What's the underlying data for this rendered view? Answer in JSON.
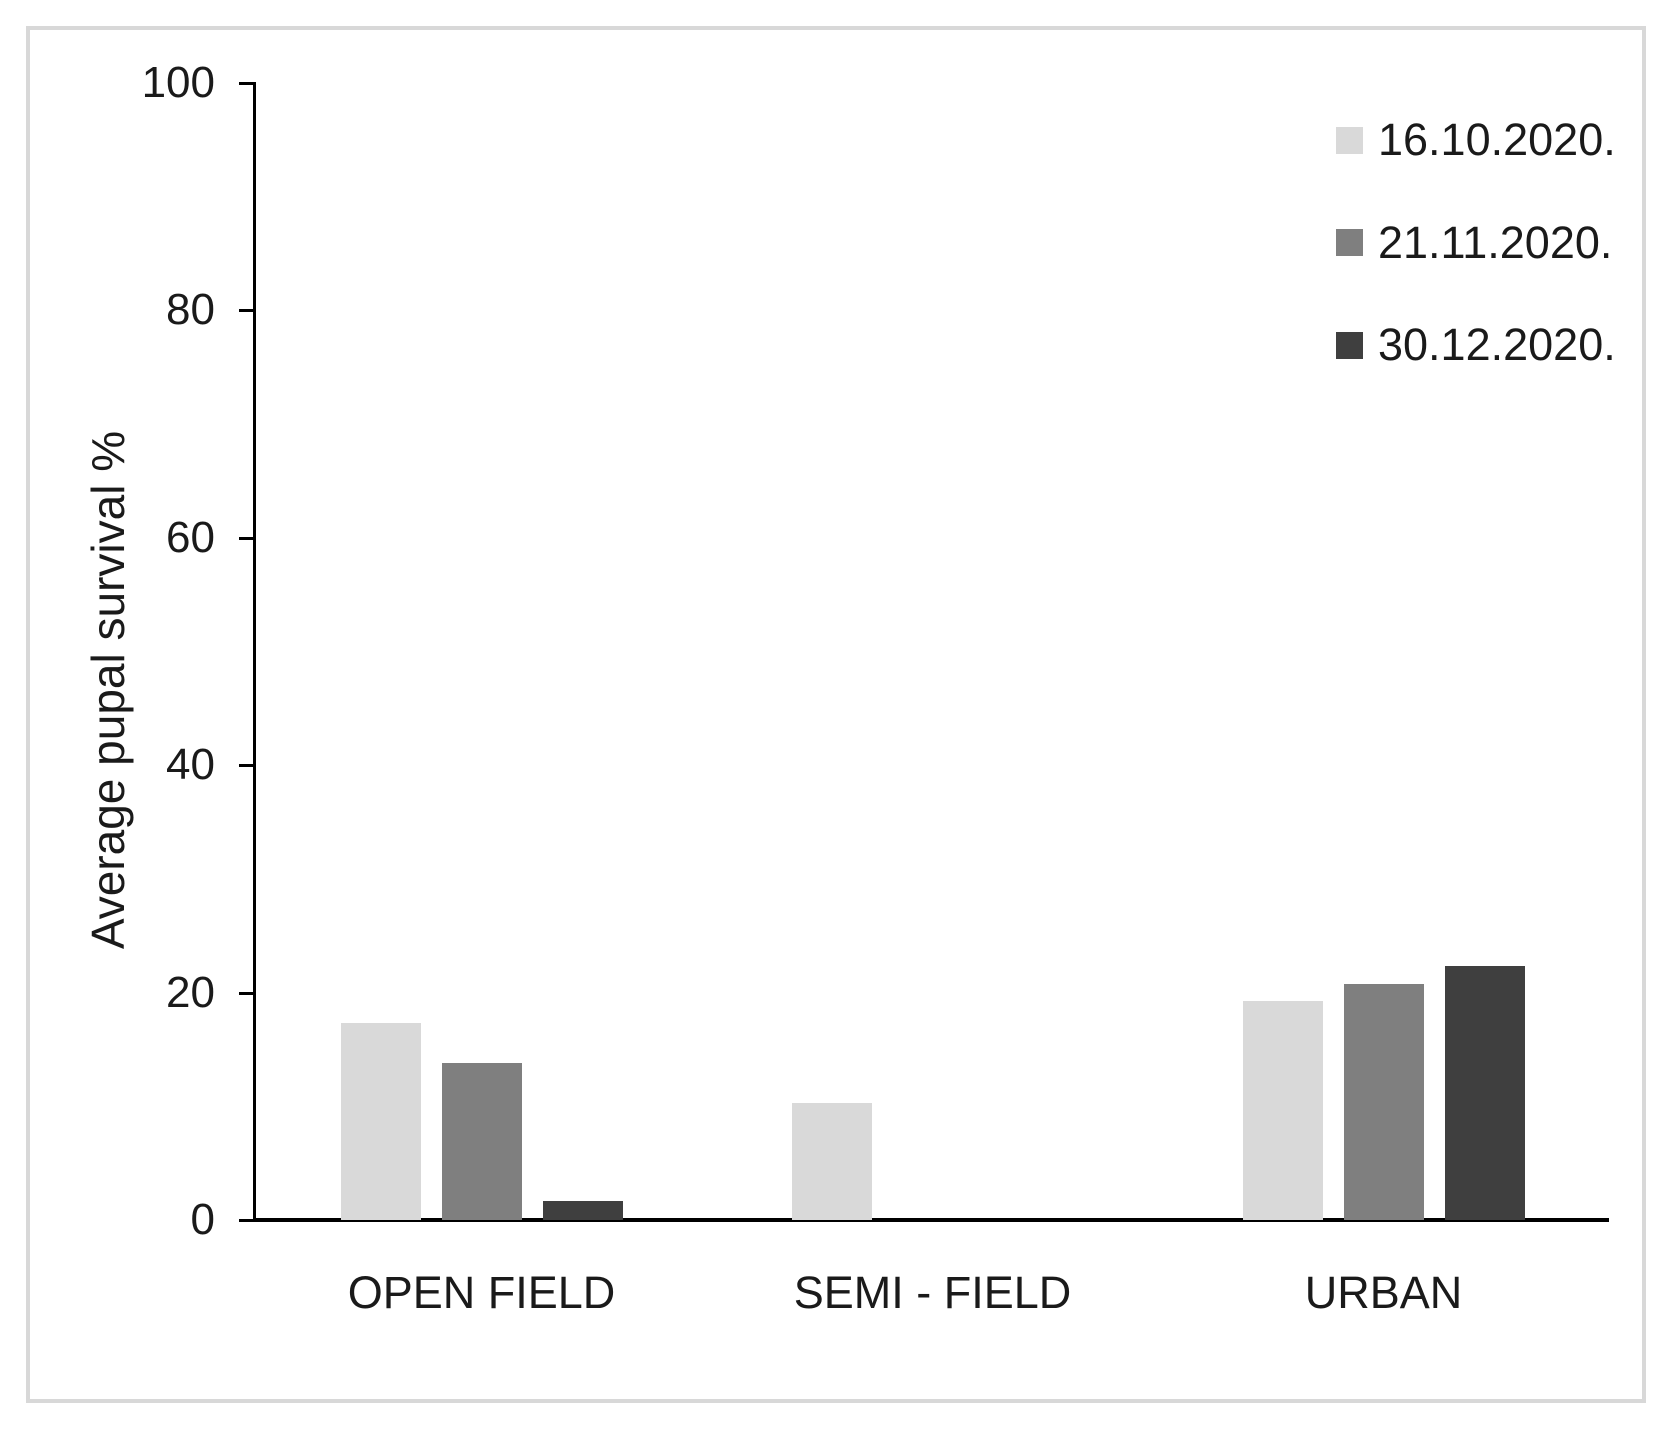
{
  "figure": {
    "background": "#ffffff",
    "frame_border_color": "#d8d8d8"
  },
  "chart_data": {
    "type": "bar",
    "title": "",
    "xlabel": "",
    "ylabel": "Average pupal survival %",
    "categories": [
      "OPEN FIELD",
      "SEMI - FIELD",
      "URBAN"
    ],
    "series": [
      {
        "name": "16.10.2020.",
        "color": "#d9d9d9",
        "values": [
          17.3,
          10.3,
          19.3
        ]
      },
      {
        "name": "21.11.2020.",
        "color": "#7f7f7f",
        "values": [
          13.8,
          0,
          20.8
        ]
      },
      {
        "name": "30.12.2020.",
        "color": "#3f3f3f",
        "values": [
          1.7,
          0,
          22.3
        ]
      }
    ],
    "ylim": [
      0,
      100
    ],
    "yticks": [
      0,
      20,
      40,
      60,
      80,
      100
    ],
    "grid": false,
    "legend_position": "top-right",
    "axis_color": "#000000",
    "text_color": "#1a1a1a"
  }
}
